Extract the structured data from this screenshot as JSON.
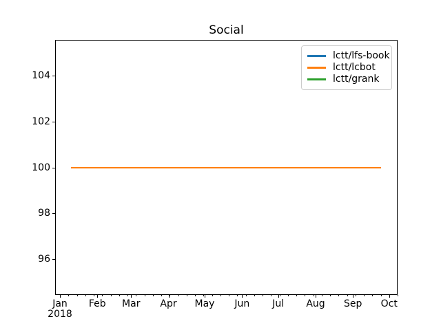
{
  "title": "Social",
  "legend": {
    "position": "upper right",
    "items": [
      {
        "label": "lctt/lfs-book",
        "color": "#1f77b4"
      },
      {
        "label": "lctt/lcbot",
        "color": "#ff7f0e"
      },
      {
        "label": "lctt/grank",
        "color": "#2ca02c"
      }
    ]
  },
  "axes": {
    "x": {
      "tick_labels": [
        "Jan",
        "Feb",
        "Mar",
        "Apr",
        "May",
        "Jun",
        "Jul",
        "Aug",
        "Sep",
        "Oct"
      ],
      "tick_day_offsets": [
        0,
        31,
        59,
        90,
        120,
        151,
        181,
        212,
        243,
        273
      ],
      "year_label": "2018",
      "minor_tick_interval_days": 7
    },
    "y": {
      "tick_labels": [
        "96",
        "98",
        "100",
        "102",
        "104"
      ],
      "tick_values": [
        96,
        98,
        100,
        102,
        104
      ]
    }
  },
  "chart_data": {
    "type": "line",
    "title": "Social",
    "x_axis": {
      "unit": "date",
      "year": "2018",
      "xlim_days_from_jan1_2018": [
        -4,
        280
      ],
      "tick_labels": [
        "Jan",
        "Feb",
        "Mar",
        "Apr",
        "May",
        "Jun",
        "Jul",
        "Aug",
        "Sep",
        "Oct"
      ]
    },
    "y_axis": {
      "range": [
        94.44,
        105.56
      ],
      "ticks": [
        96,
        98,
        100,
        102,
        104
      ]
    },
    "series": [
      {
        "name": "lctt/lfs-book",
        "color": "#1f77b4",
        "visible_line": false
      },
      {
        "name": "lctt/lcbot",
        "color": "#ff7f0e",
        "visible_line": true,
        "x_days_from_jan1_2018": [
          9,
          266
        ],
        "values": [
          100,
          100
        ]
      },
      {
        "name": "lctt/grank",
        "color": "#2ca02c",
        "visible_line": false
      }
    ],
    "legend_position": "upper right",
    "grid": false
  },
  "colors": {
    "background": "#ffffff",
    "spine": "#000000",
    "text": "#000000",
    "legend_border": "#cccccc"
  }
}
